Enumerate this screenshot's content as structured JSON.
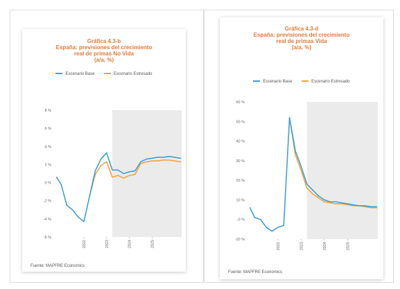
{
  "charts": [
    {
      "title_lines": [
        "Gráfica 4.3-b",
        "España: previsiones del crecimiento",
        "real de primas No Vida",
        "(a/a, %)"
      ],
      "source": "Fuente: MAPFRE Economics",
      "legend": [
        {
          "label": "Escenario Base",
          "color": "#3f9fd6"
        },
        {
          "label": "Escenario Estresado",
          "color": "#f2a33a"
        }
      ]
    },
    {
      "title_lines": [
        "Gráfica 4.3-d",
        "España: previsiones del crecimiento",
        "real de primas Vida",
        "(a/a, %)"
      ],
      "source": "Fuente: MAPFRE Economics",
      "legend": [
        {
          "label": "Escenario Base",
          "color": "#3f9fd6"
        },
        {
          "label": "Escenario Estresado",
          "color": "#f2a33a"
        }
      ]
    }
  ],
  "chart_data": [
    {
      "type": "line",
      "title": "Gráfica 4.3-b España: previsiones del crecimiento real de primas No Vida (a/a, %)",
      "ylim": [
        -6,
        8
      ],
      "yticks": [
        -6,
        -4,
        -2,
        0,
        2,
        4,
        6,
        8
      ],
      "ytick_labels": [
        "-6 %",
        "-4 %",
        "-2 %",
        "0 %",
        "2 %",
        "4 %",
        "6 %",
        "8 %"
      ],
      "xlim": [
        2020.75,
        2026.3
      ],
      "xticks": [
        2022,
        2023,
        2024,
        2025
      ],
      "xtick_labels": [
        "2022",
        "2023",
        "2024",
        "2025"
      ],
      "forecast_shade_start": 2023.25,
      "grid": false,
      "series": [
        {
          "name": "Escenario Base",
          "color": "#3f9fd6",
          "x": [
            2020.8,
            2021.0,
            2021.25,
            2021.5,
            2021.75,
            2022.0,
            2022.25,
            2022.5,
            2022.75,
            2023.0,
            2023.25,
            2023.5,
            2023.75,
            2024.0,
            2024.25,
            2024.5,
            2024.75,
            2025.0,
            2025.25,
            2025.5,
            2025.75,
            2026.0,
            2026.25
          ],
          "values": [
            0.6,
            -0.2,
            -2.5,
            -3.0,
            -3.8,
            -4.3,
            -1.5,
            1.3,
            2.6,
            3.3,
            1.4,
            1.4,
            1.0,
            1.2,
            1.3,
            2.3,
            2.6,
            2.7,
            2.8,
            2.8,
            2.9,
            2.8,
            2.7
          ]
        },
        {
          "name": "Escenario Estresado",
          "color": "#f2a33a",
          "x": [
            2022.25,
            2022.5,
            2022.75,
            2023.0,
            2023.25,
            2023.5,
            2023.75,
            2024.0,
            2024.25,
            2024.5,
            2024.75,
            2025.0,
            2025.25,
            2025.5,
            2025.75,
            2026.0,
            2026.25
          ],
          "values": [
            -1.5,
            0.9,
            1.9,
            2.3,
            0.6,
            0.8,
            0.5,
            0.8,
            0.9,
            2.1,
            2.3,
            2.4,
            2.4,
            2.5,
            2.5,
            2.4,
            2.3
          ]
        }
      ]
    },
    {
      "type": "line",
      "title": "Gráfica 4.3-d España: previsiones del crecimiento real de primas Vida (a/a, %)",
      "ylim": [
        -10,
        60
      ],
      "yticks": [
        -10,
        0,
        10,
        20,
        30,
        40,
        50,
        60
      ],
      "ytick_labels": [
        "-10 %",
        "-0 %",
        "10 %",
        "20 %",
        "30 %",
        "40 %",
        "50 %",
        "60 %"
      ],
      "xlim": [
        2020.75,
        2026.3
      ],
      "xticks": [
        2022,
        2023,
        2024,
        2025
      ],
      "xtick_labels": [
        "2022",
        "2023",
        "2024",
        "2025"
      ],
      "forecast_shade_start": 2023.25,
      "grid": false,
      "series": [
        {
          "name": "Escenario Base",
          "color": "#3f9fd6",
          "x": [
            2020.8,
            2021.0,
            2021.25,
            2021.5,
            2021.75,
            2022.0,
            2022.25,
            2022.5,
            2022.75,
            2023.0,
            2023.25,
            2023.5,
            2023.75,
            2024.0,
            2024.25,
            2024.5,
            2024.75,
            2025.0,
            2025.25,
            2025.5,
            2025.75,
            2026.0,
            2026.25
          ],
          "values": [
            6,
            1,
            0,
            -4,
            -6,
            -4,
            -3,
            52,
            35,
            27,
            18,
            15,
            12,
            10,
            9,
            9,
            8.5,
            8,
            7.5,
            7,
            7,
            6.5,
            6.5
          ]
        },
        {
          "name": "Escenario Estresado",
          "color": "#f2a33a",
          "x": [
            2022.5,
            2022.75,
            2023.0,
            2023.25,
            2023.5,
            2023.75,
            2024.0,
            2024.25,
            2024.5,
            2024.75,
            2025.0,
            2025.25,
            2025.5,
            2025.75,
            2026.0,
            2026.25
          ],
          "values": [
            52,
            33,
            25,
            16,
            13,
            11,
            9,
            8.5,
            8,
            8,
            7.5,
            7,
            7,
            6.5,
            6,
            6
          ]
        }
      ]
    }
  ]
}
